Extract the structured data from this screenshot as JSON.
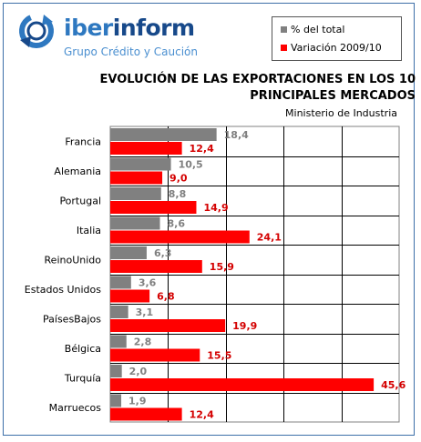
{
  "brand": {
    "name_part1": "iber",
    "name_part2": "inform",
    "tagline": "Grupo Crédito y Caución",
    "logo_icon": "circular-arrows-icon"
  },
  "colors": {
    "total": "#808080",
    "variacion": "#ff0000",
    "brand_light": "#2e78c0",
    "brand_dark": "#17498a"
  },
  "chart_data": {
    "type": "bar",
    "orientation": "horizontal",
    "title_lines": [
      "EVOLUCIÓN DE LAS EXPORTACIONES EN LOS 10",
      "PRINCIPALES MERCADOS"
    ],
    "subtitle": "Ministerio de Industria",
    "categories": [
      "Francia",
      "Alemania",
      "Portugal",
      "Italia",
      "ReinoUnido",
      "Estados Unidos",
      "PaísesBajos",
      "Bélgica",
      "Turquía",
      "Marruecos"
    ],
    "series": [
      {
        "name": "% del total",
        "color": "#808080",
        "values": [
          18.4,
          10.5,
          8.8,
          8.6,
          6.3,
          3.6,
          3.1,
          2.8,
          2.0,
          1.9
        ],
        "labels": [
          "18,4",
          "10,5",
          "8,8",
          "8,6",
          "6,3",
          "3,6",
          "3,1",
          "2,8",
          "2,0",
          "1,9"
        ]
      },
      {
        "name": "Variación 2009/10",
        "color": "#ff0000",
        "values": [
          12.4,
          9.0,
          14.9,
          24.1,
          15.9,
          6.8,
          19.9,
          15.5,
          45.6,
          12.4
        ],
        "labels": [
          "12,4",
          "9,0",
          "14,9",
          "24,1",
          "15,9",
          "6,8",
          "19,9",
          "15,5",
          "45,6",
          "12,4"
        ]
      }
    ],
    "xlim": [
      0,
      50
    ],
    "grid": true,
    "legend_position": "top-right"
  }
}
